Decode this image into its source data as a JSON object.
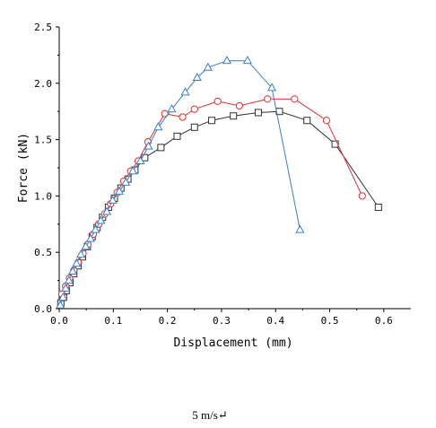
{
  "caption": "5 m/s↵",
  "chart_data": {
    "type": "line",
    "xlabel": "Displacement (mm)",
    "ylabel": "Force (kN)",
    "xlim": [
      0.0,
      0.65
    ],
    "ylim": [
      0.0,
      2.5
    ],
    "xticks": [
      "0.0",
      "0.1",
      "0.2",
      "0.3",
      "0.4",
      "0.5",
      "0.6"
    ],
    "yticks": [
      "0.0",
      "0.5",
      "1.0",
      "1.5",
      "2.0",
      "2.5"
    ],
    "grid": false,
    "legend": "none",
    "series": [
      {
        "marker": "square",
        "color": "#303030",
        "x": [
          0.003,
          0.008,
          0.013,
          0.02,
          0.027,
          0.035,
          0.043,
          0.052,
          0.061,
          0.07,
          0.08,
          0.091,
          0.102,
          0.114,
          0.127,
          0.14,
          0.158,
          0.188,
          0.218,
          0.25,
          0.282,
          0.322,
          0.368,
          0.407,
          0.458,
          0.51,
          0.59
        ],
        "y": [
          0.05,
          0.1,
          0.16,
          0.23,
          0.31,
          0.38,
          0.46,
          0.55,
          0.64,
          0.72,
          0.81,
          0.9,
          0.98,
          1.07,
          1.15,
          1.23,
          1.34,
          1.43,
          1.53,
          1.61,
          1.67,
          1.71,
          1.74,
          1.75,
          1.67,
          1.46,
          0.9
        ]
      },
      {
        "marker": "circle",
        "color": "#e03030",
        "x": [
          0.005,
          0.012,
          0.019,
          0.027,
          0.035,
          0.044,
          0.053,
          0.063,
          0.073,
          0.084,
          0.095,
          0.107,
          0.119,
          0.132,
          0.146,
          0.164,
          0.195,
          0.228,
          0.25,
          0.293,
          0.333,
          0.385,
          0.435,
          0.494,
          0.56
        ],
        "y": [
          0.13,
          0.2,
          0.27,
          0.34,
          0.41,
          0.49,
          0.57,
          0.66,
          0.75,
          0.84,
          0.93,
          1.03,
          1.13,
          1.22,
          1.31,
          1.48,
          1.73,
          1.7,
          1.77,
          1.84,
          1.8,
          1.86,
          1.86,
          1.67,
          1.0
        ]
      },
      {
        "marker": "triangle",
        "color": "#3a7ec8",
        "x": [
          0.002,
          0.007,
          0.012,
          0.018,
          0.025,
          0.032,
          0.04,
          0.049,
          0.058,
          0.067,
          0.077,
          0.088,
          0.099,
          0.111,
          0.123,
          0.136,
          0.15,
          0.165,
          0.183,
          0.208,
          0.233,
          0.255,
          0.275,
          0.31,
          0.348,
          0.393,
          0.445
        ],
        "y": [
          0.03,
          0.1,
          0.18,
          0.25,
          0.33,
          0.4,
          0.48,
          0.55,
          0.62,
          0.7,
          0.78,
          0.86,
          0.96,
          1.04,
          1.12,
          1.22,
          1.31,
          1.44,
          1.61,
          1.77,
          1.92,
          2.05,
          2.14,
          2.2,
          2.2,
          1.96,
          0.7
        ]
      }
    ]
  }
}
